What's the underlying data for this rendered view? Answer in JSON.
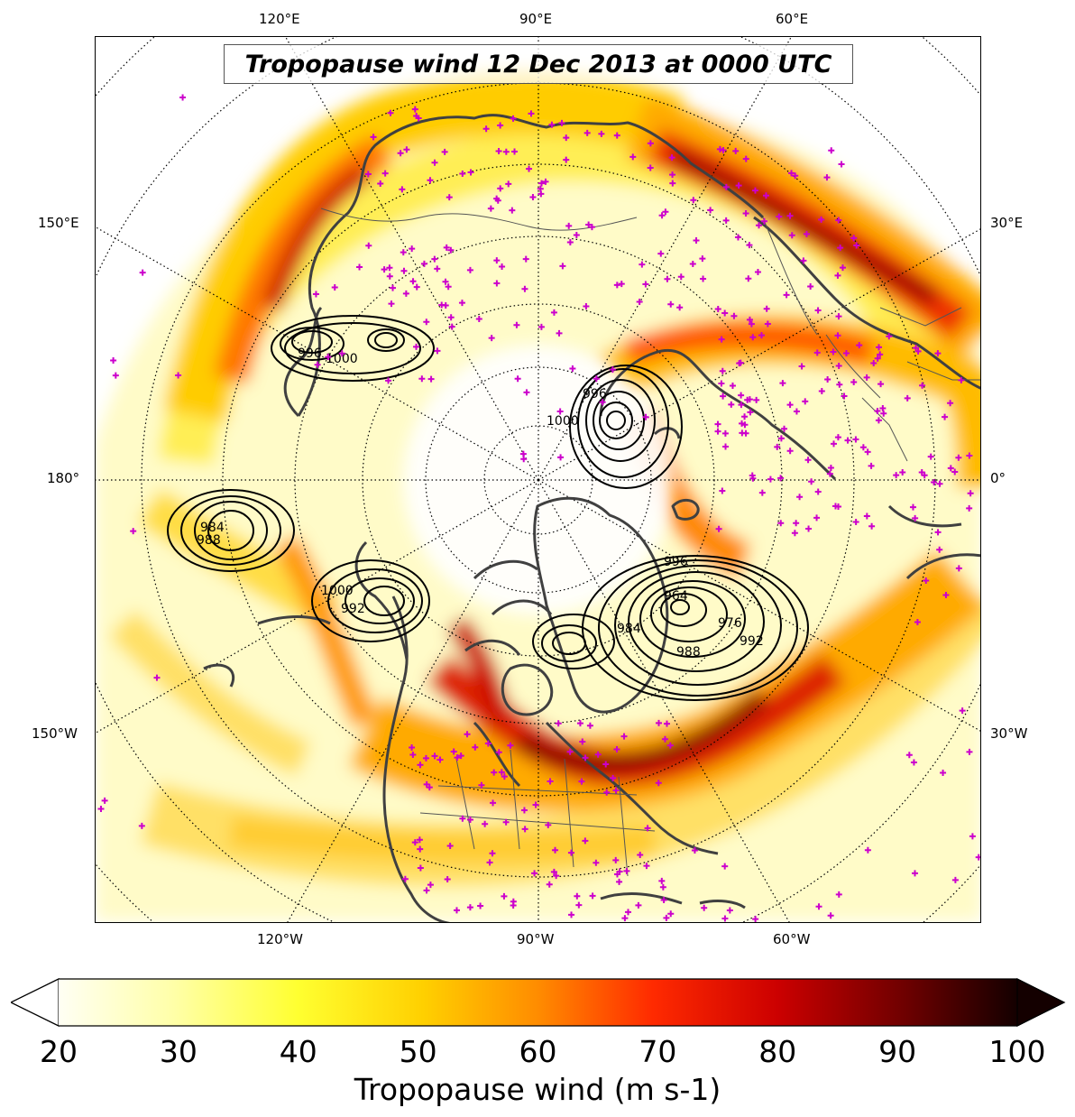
{
  "title": "Tropopause wind 12 Dec 2013 at 0000 UTC",
  "lon_labels": {
    "top": [
      "120°E",
      "90°E",
      "60°E"
    ],
    "bottom": [
      "120°W",
      "90°W",
      "60°W"
    ],
    "left": [
      "150°E",
      "180°",
      "150°W"
    ],
    "right": [
      "30°E",
      "0°",
      "30°W"
    ]
  },
  "pressure_labels": [
    "996",
    "1000",
    "984",
    "988",
    "992",
    "1000",
    "996",
    "964",
    "976",
    "984",
    "988",
    "992",
    "996",
    "1000"
  ],
  "colorbar": {
    "label": "Tropopause wind (m s-1)",
    "ticks": [
      "20",
      "30",
      "40",
      "50",
      "60",
      "70",
      "80",
      "90",
      "100"
    ],
    "min": 20,
    "max": 100,
    "colormap": "hot_r",
    "extend": "both"
  },
  "colors": {
    "station_marker": "#cc00cc",
    "coastline": "#404040",
    "contour": "#000000"
  }
}
